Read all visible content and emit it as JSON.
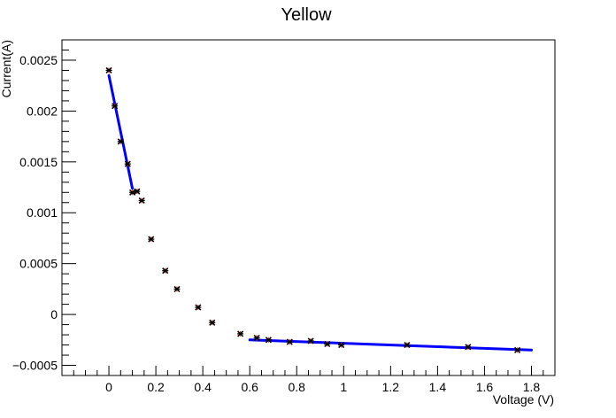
{
  "chart_data": {
    "type": "scatter",
    "title": "Yellow",
    "xlabel": "Voltage (V)",
    "ylabel": "Current(A)",
    "xlim": [
      -0.2,
      1.9
    ],
    "ylim": [
      -0.0006,
      0.0027
    ],
    "x_ticks": [
      0,
      0.2,
      0.4,
      0.6,
      0.8,
      1,
      1.2,
      1.4,
      1.6,
      1.8
    ],
    "x_tick_labels": [
      "0",
      "0.2",
      "0.4",
      "0.6",
      "0.8",
      "1",
      "1.2",
      "1.4",
      "1.6",
      "1.8"
    ],
    "y_ticks": [
      -0.0005,
      0,
      0.0005,
      0.001,
      0.0015,
      0.002,
      0.0025
    ],
    "y_tick_labels": [
      "−0.0005",
      "0",
      "0.0005",
      "0.001",
      "0.0015",
      "0.002",
      "0.0025"
    ],
    "grid": false,
    "legend": "none",
    "series": [
      {
        "marker_color": "#000000",
        "error_color": "#d62728",
        "points": [
          {
            "x": 0.0,
            "y": 0.0024
          },
          {
            "x": 0.025,
            "y": 0.00205
          },
          {
            "x": 0.05,
            "y": 0.0017
          },
          {
            "x": 0.08,
            "y": 0.00148
          },
          {
            "x": 0.1,
            "y": 0.0012
          },
          {
            "x": 0.12,
            "y": 0.00121
          },
          {
            "x": 0.14,
            "y": 0.00112
          },
          {
            "x": 0.18,
            "y": 0.00074
          },
          {
            "x": 0.24,
            "y": 0.00043
          },
          {
            "x": 0.29,
            "y": 0.00025
          },
          {
            "x": 0.38,
            "y": 7e-05
          },
          {
            "x": 0.44,
            "y": -8e-05
          },
          {
            "x": 0.56,
            "y": -0.00019
          },
          {
            "x": 0.63,
            "y": -0.00023
          },
          {
            "x": 0.68,
            "y": -0.00025
          },
          {
            "x": 0.77,
            "y": -0.00027
          },
          {
            "x": 0.86,
            "y": -0.00026
          },
          {
            "x": 0.93,
            "y": -0.00029
          },
          {
            "x": 0.99,
            "y": -0.0003
          },
          {
            "x": 1.27,
            "y": -0.0003
          },
          {
            "x": 1.53,
            "y": -0.00032
          },
          {
            "x": 1.74,
            "y": -0.00035
          }
        ]
      }
    ],
    "fit_lines": [
      {
        "color": "#0000ff",
        "x": [
          0.0,
          0.1
        ],
        "y": [
          0.00235,
          0.00124
        ]
      },
      {
        "color": "#0000ff",
        "x": [
          0.6,
          1.8
        ],
        "y": [
          -0.00025,
          -0.00035
        ]
      }
    ]
  }
}
